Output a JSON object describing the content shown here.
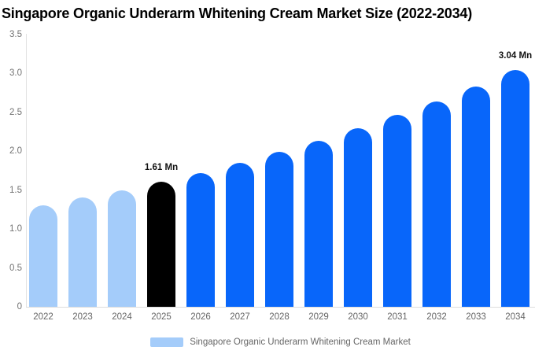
{
  "chart_data": {
    "type": "bar",
    "title": "Singapore Organic Underarm Whitening Cream Market Size (2022-2034)",
    "categories": [
      "2022",
      "2023",
      "2024",
      "2025",
      "2026",
      "2027",
      "2028",
      "2029",
      "2030",
      "2031",
      "2032",
      "2033",
      "2034"
    ],
    "values": [
      1.3,
      1.4,
      1.5,
      1.61,
      1.72,
      1.85,
      1.99,
      2.13,
      2.29,
      2.46,
      2.64,
      2.83,
      3.04
    ],
    "unit": "Mn",
    "bar_roles": [
      "past",
      "past",
      "past",
      "base",
      "forecast",
      "forecast",
      "forecast",
      "forecast",
      "forecast",
      "forecast",
      "forecast",
      "forecast",
      "forecast"
    ],
    "role_colors": {
      "past": "#A4CCFA",
      "base": "#000000",
      "forecast": "#0866FA"
    },
    "annotations": [
      {
        "category": "2025",
        "text": "1.61 Mn"
      },
      {
        "category": "2034",
        "text": "3.04 Mn"
      }
    ],
    "xlabel": "",
    "ylabel": "",
    "ylim": [
      0,
      3.5
    ],
    "yticks": [
      "3.5",
      "3.0",
      "2.5",
      "2.0",
      "1.5",
      "1.0",
      "0.5",
      "0"
    ],
    "grid": false,
    "legend": {
      "position": "bottom-center",
      "label": "Singapore Organic Underarm Whitening Cream Market",
      "swatch_color": "#A4CCFA"
    },
    "colors": {
      "background": "#ffffff",
      "axis_line": "#dcdcdc",
      "tick_text": "#6e6e6e",
      "title_text": "#000000",
      "annotation_text": "#111111"
    }
  }
}
